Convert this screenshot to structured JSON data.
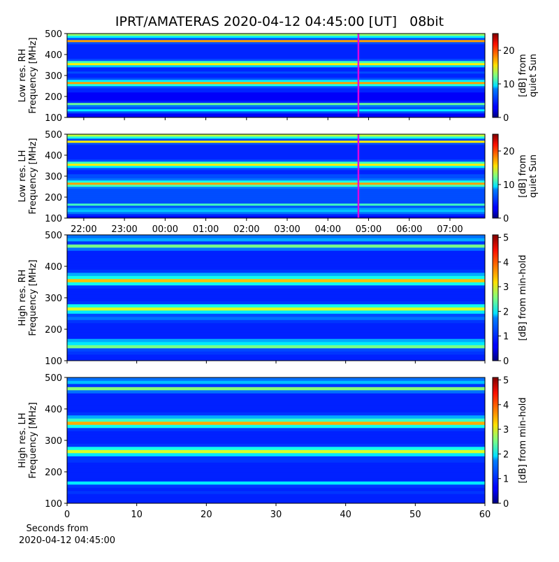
{
  "chart_data": [
    {
      "type": "heatmap",
      "title": "IPRT/AMATERAS 2020-04-12 04:45:00 [UT]   08bit",
      "ylabel": [
        "Low res. RH",
        "Frequency [MHz]"
      ],
      "ylim": [
        100,
        500
      ],
      "yticks": [
        100,
        200,
        300,
        400,
        500
      ],
      "xlim": [
        21.59,
        31.86
      ],
      "marker_x": 28.75,
      "marker_color": "#e000e0",
      "colorbar_label": [
        "[dB] from",
        "quiet Sun"
      ],
      "clim": [
        0,
        25
      ],
      "cticks": [
        0,
        10,
        20
      ],
      "freq_bins": [
        100,
        110,
        120,
        130,
        140,
        150,
        160,
        170,
        180,
        190,
        200,
        210,
        220,
        230,
        240,
        250,
        260,
        270,
        280,
        290,
        300,
        310,
        320,
        330,
        340,
        350,
        360,
        370,
        380,
        390,
        400,
        410,
        420,
        430,
        440,
        450,
        460,
        470,
        480,
        490,
        500
      ],
      "values": [
        3,
        3,
        5,
        9,
        5,
        6,
        12,
        4,
        3,
        3,
        3,
        3,
        4,
        4,
        5,
        10,
        18,
        9,
        5,
        4,
        4,
        5,
        4,
        4,
        8,
        16,
        11,
        5,
        4,
        4,
        4,
        4,
        4,
        4,
        4,
        5,
        18,
        5,
        9,
        13
      ]
    },
    {
      "type": "heatmap",
      "ylabel": [
        "Low res. LH",
        "Frequency [MHz]"
      ],
      "ylim": [
        100,
        500
      ],
      "yticks": [
        100,
        200,
        300,
        400,
        500
      ],
      "xlim": [
        21.59,
        31.86
      ],
      "marker_x": 28.75,
      "marker_color": "#e000e0",
      "xticks": [
        {
          "value": 22,
          "label": "22:00"
        },
        {
          "value": 23,
          "label": "23:00"
        },
        {
          "value": 24,
          "label": "00:00"
        },
        {
          "value": 25,
          "label": "01:00"
        },
        {
          "value": 26,
          "label": "02:00"
        },
        {
          "value": 27,
          "label": "03:00"
        },
        {
          "value": 28,
          "label": "04:00"
        },
        {
          "value": 29,
          "label": "05:00"
        },
        {
          "value": 30,
          "label": "06:00"
        },
        {
          "value": 31,
          "label": "07:00"
        }
      ],
      "colorbar_label": [
        "[dB] from",
        "quiet Sun"
      ],
      "clim": [
        0,
        25
      ],
      "cticks": [
        0,
        10,
        20
      ],
      "freq_bins": [
        100,
        110,
        120,
        130,
        140,
        150,
        160,
        170,
        180,
        190,
        200,
        210,
        220,
        230,
        240,
        250,
        260,
        270,
        280,
        290,
        300,
        310,
        320,
        330,
        340,
        350,
        360,
        370,
        380,
        390,
        400,
        410,
        420,
        430,
        440,
        450,
        460,
        470,
        480,
        490,
        500
      ],
      "values": [
        3,
        4,
        6,
        8,
        7,
        5,
        11,
        5,
        5,
        5,
        5,
        5,
        5,
        5,
        6,
        11,
        18,
        10,
        6,
        5,
        5,
        4,
        4,
        5,
        9,
        16,
        11,
        5,
        4,
        4,
        4,
        4,
        4,
        4,
        4,
        5,
        16,
        5,
        10,
        14
      ]
    },
    {
      "type": "heatmap",
      "ylabel": [
        "High res. RH",
        "Frequency [MHz]"
      ],
      "ylim": [
        100,
        500
      ],
      "yticks": [
        100,
        200,
        300,
        400,
        500
      ],
      "xlim": [
        0,
        60
      ],
      "colorbar_label": [
        "[dB] from min-hold"
      ],
      "clim": [
        0,
        5.1
      ],
      "cticks": [
        0,
        1,
        2,
        3,
        4,
        5
      ],
      "freq_bins": [
        100,
        110,
        120,
        130,
        140,
        150,
        160,
        170,
        180,
        190,
        200,
        210,
        220,
        230,
        240,
        250,
        260,
        270,
        280,
        290,
        300,
        310,
        320,
        330,
        340,
        350,
        360,
        370,
        380,
        390,
        400,
        410,
        420,
        430,
        440,
        450,
        460,
        470,
        480,
        490,
        500
      ],
      "values": [
        0.8,
        0.8,
        0.9,
        1,
        2.5,
        1.8,
        1.5,
        0.8,
        0.8,
        0.8,
        0.8,
        0.8,
        0.9,
        1.2,
        1,
        1.8,
        3,
        2,
        0.9,
        0.8,
        0.8,
        0.8,
        0.8,
        0.9,
        2,
        3.5,
        2,
        1.5,
        0.9,
        0.8,
        0.8,
        0.8,
        0.8,
        0.8,
        0.8,
        1.2,
        2.5,
        0.9,
        1.5,
        1.2
      ]
    },
    {
      "type": "heatmap",
      "ylabel": [
        "High res. LH",
        "Frequency [MHz]"
      ],
      "ylim": [
        100,
        500
      ],
      "yticks": [
        100,
        200,
        300,
        400,
        500
      ],
      "xlim": [
        0,
        60
      ],
      "xticks": [
        0,
        10,
        20,
        30,
        40,
        50,
        60
      ],
      "xlabel": [
        "Seconds from",
        "2020-04-12 04:45:00"
      ],
      "colorbar_label": [
        "[dB] from min-hold"
      ],
      "clim": [
        0,
        5.1
      ],
      "cticks": [
        0,
        1,
        2,
        3,
        4,
        5
      ],
      "freq_bins": [
        100,
        110,
        120,
        130,
        140,
        150,
        160,
        170,
        180,
        190,
        200,
        210,
        220,
        230,
        240,
        250,
        260,
        270,
        280,
        290,
        300,
        310,
        320,
        330,
        340,
        350,
        360,
        370,
        380,
        390,
        400,
        410,
        420,
        430,
        440,
        450,
        460,
        470,
        480,
        490,
        500
      ],
      "values": [
        0.8,
        0.8,
        0.8,
        0.9,
        0.8,
        0.9,
        1.8,
        0.8,
        0.8,
        0.8,
        0.8,
        0.8,
        0.8,
        0.9,
        0.9,
        1.8,
        3,
        2,
        0.9,
        0.8,
        0.8,
        0.8,
        0.8,
        0.9,
        2,
        3.6,
        2.2,
        1.5,
        0.9,
        0.8,
        0.8,
        0.8,
        0.8,
        0.8,
        0.8,
        1.2,
        2.6,
        0.9,
        1.6,
        1.2
      ]
    }
  ]
}
